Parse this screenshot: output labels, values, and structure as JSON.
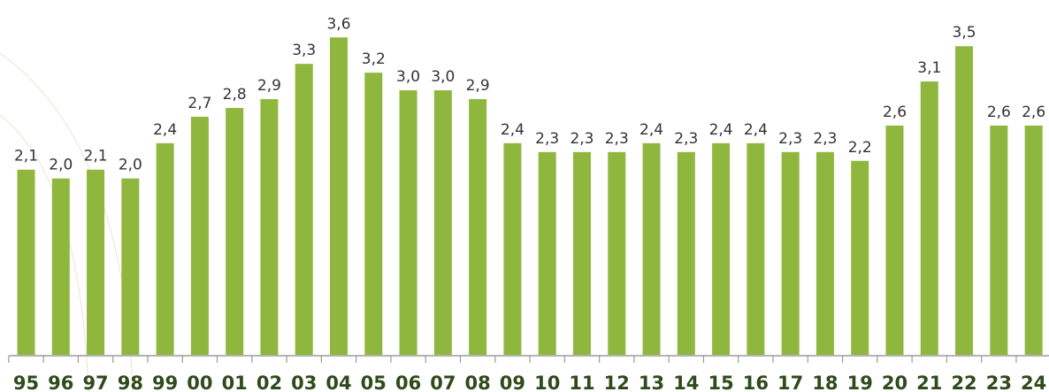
{
  "chart_data": {
    "type": "bar",
    "categories": [
      "95",
      "96",
      "97",
      "98",
      "99",
      "00",
      "01",
      "02",
      "03",
      "04",
      "05",
      "06",
      "07",
      "08",
      "09",
      "10",
      "11",
      "12",
      "13",
      "14",
      "15",
      "16",
      "17",
      "18",
      "19",
      "20",
      "21",
      "22",
      "23",
      "24"
    ],
    "values": [
      2.1,
      2.0,
      2.1,
      2.0,
      2.4,
      2.7,
      2.8,
      2.9,
      3.3,
      3.6,
      3.2,
      3.0,
      3.0,
      2.9,
      2.4,
      2.3,
      2.3,
      2.3,
      2.4,
      2.3,
      2.4,
      2.4,
      2.3,
      2.3,
      2.2,
      2.6,
      3.1,
      3.5,
      2.6,
      2.6
    ],
    "value_labels": [
      "2,1",
      "2,0",
      "2,1",
      "2,0",
      "2,4",
      "2,7",
      "2,8",
      "2,9",
      "3,3",
      "3,6",
      "3,2",
      "3,0",
      "3,0",
      "2,9",
      "2,4",
      "2,3",
      "2,3",
      "2,3",
      "2,4",
      "2,3",
      "2,4",
      "2,4",
      "2,3",
      "2,3",
      "2,2",
      "2,6",
      "3,1",
      "3,5",
      "2,6",
      "2,6"
    ],
    "color": "#8fb73e",
    "ylim": [
      0,
      4
    ]
  }
}
